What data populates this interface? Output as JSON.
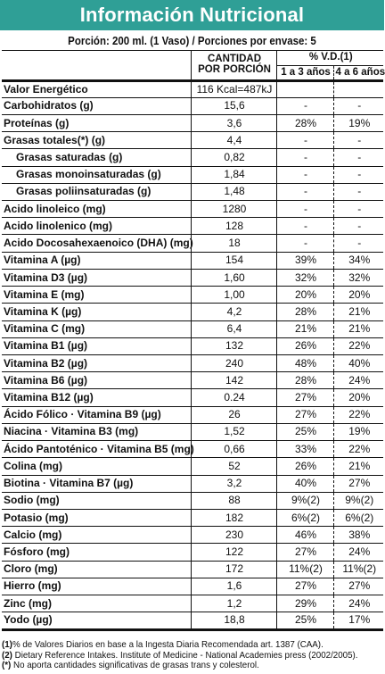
{
  "title": "Información Nutricional",
  "portion": "Porción: 200 ml. (1 Vaso)  /  Porciones por envase: 5",
  "headers": {
    "amount_line1": "CANTIDAD",
    "amount_line2": "POR PORCIÓN",
    "vd": "% V.D.(1)",
    "vd_col1": "1 a 3 años",
    "vd_col2": "4 a 6 años"
  },
  "rows": [
    {
      "name": "Valor Energético",
      "value": "116 Kcal=487kJ",
      "vd1": "",
      "vd2": ""
    },
    {
      "name": "Carbohidratos (g)",
      "value": "15,6",
      "vd1": "-",
      "vd2": "-"
    },
    {
      "name": "Proteínas (g)",
      "value": "3,6",
      "vd1": "28%",
      "vd2": "19%"
    },
    {
      "name": "Grasas totales(*) (g)",
      "value": "4,4",
      "vd1": "-",
      "vd2": "-"
    },
    {
      "name": "Grasas saturadas (g)",
      "value": "0,82",
      "vd1": "-",
      "vd2": "-"
    },
    {
      "name": "Grasas monoinsaturadas (g)",
      "value": "1,84",
      "vd1": "-",
      "vd2": "-"
    },
    {
      "name": "Grasas poliinsaturadas (g)",
      "value": "1,48",
      "vd1": "-",
      "vd2": "-"
    },
    {
      "name": "Acido linoleico (mg)",
      "value": "1280",
      "vd1": "-",
      "vd2": "-"
    },
    {
      "name": "Acido linolenico (mg)",
      "value": "128",
      "vd1": "-",
      "vd2": "-"
    },
    {
      "name": "Acido Docosahexaenoico (DHA) (mg)",
      "value": "18",
      "vd1": "-",
      "vd2": "-"
    },
    {
      "name": "Vitamina A (µg)",
      "value": "154",
      "vd1": "39%",
      "vd2": "34%"
    },
    {
      "name": "Vitamina D3 (µg)",
      "value": "1,60",
      "vd1": "32%",
      "vd2": "32%"
    },
    {
      "name": "Vitamina E (mg)",
      "value": "1,00",
      "vd1": "20%",
      "vd2": "20%"
    },
    {
      "name": "Vitamina K (µg)",
      "value": "4,2",
      "vd1": "28%",
      "vd2": "21%"
    },
    {
      "name": "Vitamina C (mg)",
      "value": "6,4",
      "vd1": "21%",
      "vd2": "21%"
    },
    {
      "name": "Vitamina B1 (µg)",
      "value": "132",
      "vd1": "26%",
      "vd2": "22%"
    },
    {
      "name": "Vitamina B2 (µg)",
      "value": "240",
      "vd1": "48%",
      "vd2": "40%"
    },
    {
      "name": "Vitamina B6 (µg)",
      "value": "142",
      "vd1": "28%",
      "vd2": "24%"
    },
    {
      "name": "Vitamina B12 (µg)",
      "value": "0.24",
      "vd1": "27%",
      "vd2": "20%"
    },
    {
      "name": "Ácido Fólico · Vitamina B9 (µg)",
      "value": "26",
      "vd1": "27%",
      "vd2": "22%"
    },
    {
      "name": "Niacina · Vitamina B3 (mg)",
      "value": "1,52",
      "vd1": "25%",
      "vd2": "19%"
    },
    {
      "name": "Ácido Pantoténico · Vitamina B5 (mg)",
      "value": "0,66",
      "vd1": "33%",
      "vd2": "22%"
    },
    {
      "name": "Colina (mg)",
      "value": "52",
      "vd1": "26%",
      "vd2": "21%"
    },
    {
      "name": "Biotina · Vitamina B7 (µg)",
      "value": "3,2",
      "vd1": "40%",
      "vd2": "27%"
    },
    {
      "name": "Sodio (mg)",
      "value": "88",
      "vd1": "9%(2)",
      "vd2": "9%(2)"
    },
    {
      "name": "Potasio (mg)",
      "value": "182",
      "vd1": "6%(2)",
      "vd2": "6%(2)"
    },
    {
      "name": "Calcio (mg)",
      "value": "230",
      "vd1": "46%",
      "vd2": "38%"
    },
    {
      "name": "Fósforo (mg)",
      "value": "122",
      "vd1": "27%",
      "vd2": "24%"
    },
    {
      "name": "Cloro (mg)",
      "value": "172",
      "vd1": "11%(2)",
      "vd2": "11%(2)"
    },
    {
      "name": "Hierro (mg)",
      "value": "1,6",
      "vd1": "27%",
      "vd2": "27%"
    },
    {
      "name": "Zinc (mg)",
      "value": "1,2",
      "vd1": "29%",
      "vd2": "24%"
    },
    {
      "name": "Yodo (µg)",
      "value": "18,8",
      "vd1": "25%",
      "vd2": "17%"
    }
  ],
  "footnotes": [
    {
      "mark": "(1)",
      "text": "% de Valores Diarios en base a la Ingesta Diaria Recomendada art. 1387 (CAA)."
    },
    {
      "mark": "(2)",
      "text": " Dietary Reference Intakes. Institute of Medicine - National Academies press (2002/2005)."
    },
    {
      "mark": "(*)",
      "text": " No aporta cantidades significativas de grasas trans y colesterol."
    }
  ],
  "colors": {
    "title_bg": "#2f9f96",
    "title_text": "#ffffff"
  }
}
